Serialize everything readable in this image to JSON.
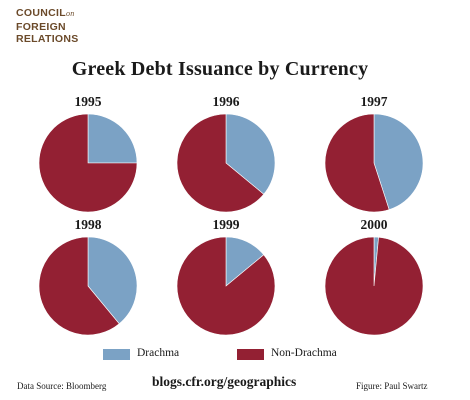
{
  "logo": {
    "line1a": "COUNCIL",
    "line1b": "on",
    "line2": "FOREIGN",
    "line3": "RELATIONS"
  },
  "colors": {
    "drachma": "#7ba2c5",
    "non_drachma": "#932033"
  },
  "chart_data": {
    "type": "pie",
    "title": "Greek Debt Issuance by Currency",
    "categories": [
      "Drachma",
      "Non-Drachma"
    ],
    "charts": [
      {
        "label": "1995",
        "values": [
          25,
          75
        ]
      },
      {
        "label": "1996",
        "values": [
          36,
          64
        ]
      },
      {
        "label": "1997",
        "values": [
          45,
          55
        ]
      },
      {
        "label": "1998",
        "values": [
          39,
          61
        ]
      },
      {
        "label": "1999",
        "values": [
          14,
          86
        ]
      },
      {
        "label": "2000",
        "values": [
          1.5,
          98.5
        ]
      }
    ],
    "legend": [
      {
        "name": "Drachma",
        "color": "#7ba2c5"
      },
      {
        "name": "Non-Drachma",
        "color": "#932033"
      }
    ],
    "legend_position": "bottom-center"
  },
  "footer": {
    "source": "Data Source: Bloomberg",
    "url": "blogs.cfr.org/geographics",
    "figure": "Figure: Paul Swartz"
  }
}
